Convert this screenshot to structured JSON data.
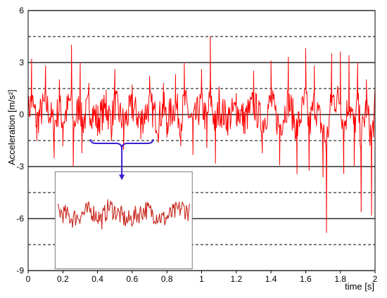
{
  "chart_data": {
    "type": "line",
    "title": "",
    "xlabel": "time [s]",
    "ylabel": "Acceleration  [m/s²]",
    "xlim": [
      0,
      2
    ],
    "ylim": [
      -9,
      6
    ],
    "x_ticks": [
      "0",
      "0.2",
      "0.4",
      "0.6",
      "0.8",
      "1",
      "1.2",
      "1.4",
      "1.6",
      "1.8",
      "2"
    ],
    "y_ticks": [
      "6",
      "3",
      "0",
      "-3",
      "-6",
      "-9"
    ],
    "y_tick_values": [
      6,
      3,
      0,
      -3,
      -6,
      -9
    ],
    "gridlines_solid": [
      6,
      3,
      0,
      -3,
      -6,
      -9
    ],
    "gridlines_dashed": [
      4.5,
      1.5,
      -1.5,
      -4.5,
      -7.5
    ],
    "legend": "none",
    "series": [
      {
        "color": "#ff0000",
        "x": [
          0,
          0.02,
          0.05,
          0.1,
          0.15,
          0.18,
          0.2,
          0.25,
          0.26,
          0.3,
          0.31,
          0.35,
          0.4,
          0.45,
          0.48,
          0.5,
          0.55,
          0.6,
          0.65,
          0.7,
          0.75,
          0.78,
          0.8,
          0.85,
          0.88,
          0.9,
          0.95,
          1.0,
          1.03,
          1.05,
          1.08,
          1.1,
          1.15,
          1.2,
          1.25,
          1.3,
          1.35,
          1.4,
          1.45,
          1.5,
          1.55,
          1.6,
          1.62,
          1.65,
          1.7,
          1.72,
          1.75,
          1.8,
          1.82,
          1.85,
          1.88,
          1.9,
          1.92,
          1.95,
          1.98,
          2.0
        ],
        "values": [
          0.3,
          3.2,
          -1.5,
          2.8,
          -2.5,
          2.0,
          -1.8,
          4.0,
          -3.0,
          3.0,
          -2.2,
          1.8,
          -1.2,
          1.4,
          -1.5,
          2.6,
          -2.0,
          1.7,
          -1.4,
          2.2,
          -1.6,
          1.8,
          -1.3,
          2.3,
          -1.8,
          3.0,
          -2.3,
          2.6,
          -1.9,
          4.5,
          -2.8,
          1.6,
          -1.0,
          1.2,
          -1.1,
          2.5,
          -2.2,
          3.1,
          -2.9,
          3.3,
          -3.4,
          3.8,
          -3.2,
          2.8,
          -3.6,
          -6.8,
          3.5,
          3.6,
          -3.4,
          3.4,
          -3.0,
          3.0,
          -5.6,
          2.0,
          -5.8,
          1.5
        ]
      }
    ],
    "annotations": [
      {
        "type": "zoom-inset",
        "source_x_range": [
          0.36,
          0.72
        ],
        "inset_x_range": [
          0.18,
          0.93
        ],
        "inset_y_range": [
          -3.3,
          -8.9
        ]
      }
    ]
  }
}
